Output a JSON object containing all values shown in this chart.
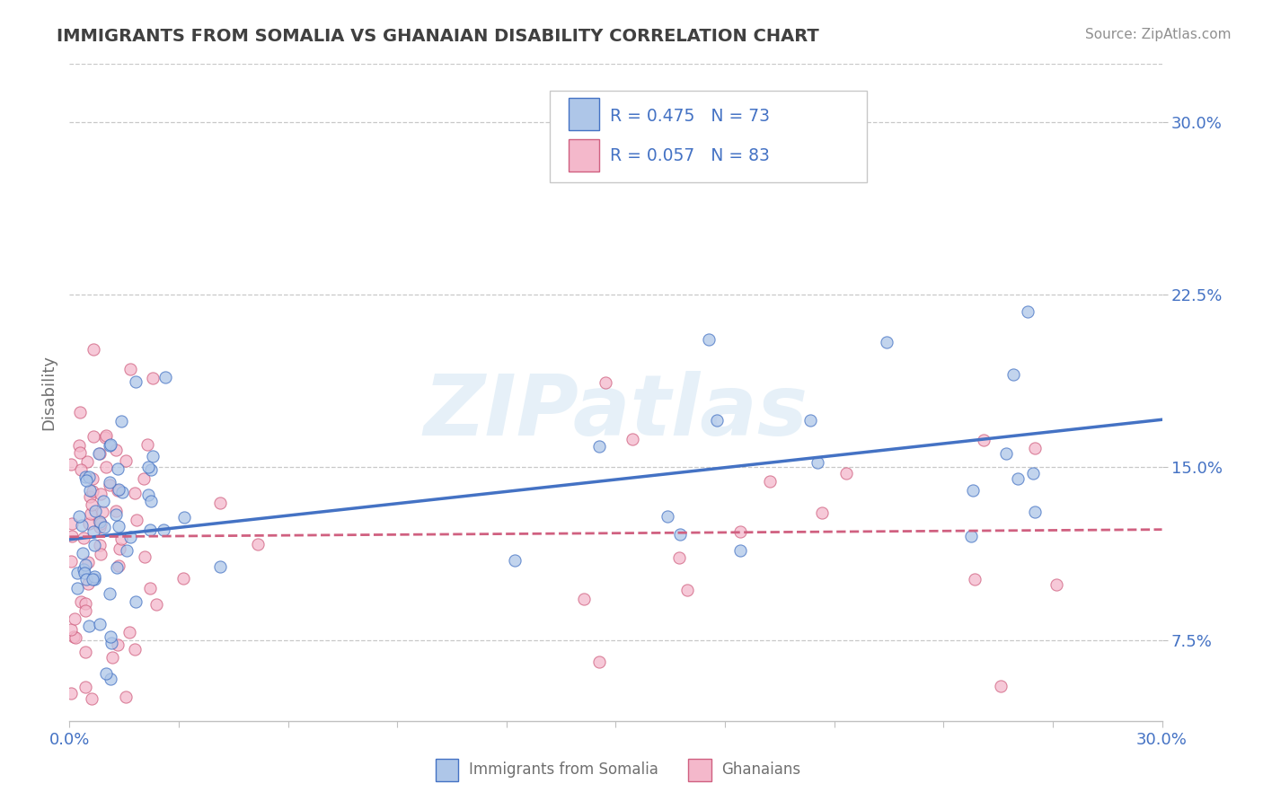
{
  "title": "IMMIGRANTS FROM SOMALIA VS GHANAIAN DISABILITY CORRELATION CHART",
  "source": "Source: ZipAtlas.com",
  "ylabel": "Disability",
  "xlim": [
    0.0,
    0.3
  ],
  "ylim": [
    0.04,
    0.325
  ],
  "yticks": [
    0.075,
    0.15,
    0.225,
    0.3
  ],
  "yticklabels": [
    "7.5%",
    "15.0%",
    "22.5%",
    "30.0%"
  ],
  "xtick_positions": [
    0.0,
    0.03,
    0.06,
    0.09,
    0.12,
    0.15,
    0.18,
    0.21,
    0.24,
    0.27,
    0.3
  ],
  "watermark": "ZIPatlas",
  "series1_name": "Immigrants from Somalia",
  "series1_color": "#aec6e8",
  "series1_edge_color": "#4472c4",
  "series1_line_color": "#4472c4",
  "series1_R": 0.475,
  "series1_N": 73,
  "series2_name": "Ghanaians",
  "series2_color": "#f4b8cb",
  "series2_edge_color": "#d06080",
  "series2_line_color": "#d06080",
  "series2_R": 0.057,
  "series2_N": 83,
  "legend_color": "#4472c4",
  "background_color": "#ffffff",
  "grid_color": "#c8c8c8",
  "title_color": "#404040",
  "axis_color": "#c0c0c0",
  "tick_color": "#4472c4",
  "source_color": "#909090",
  "ylabel_color": "#707070",
  "bottom_label_color": "#707070",
  "seed1": 42,
  "seed2": 7
}
